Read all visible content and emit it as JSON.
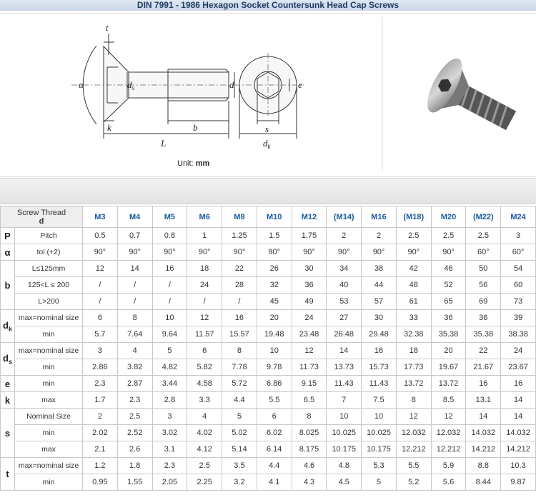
{
  "title": "DIN 7991 - 1986 Hexagon Socket Countersunk Head Cap Screws",
  "drawing": {
    "labels": [
      {
        "text": "t"
      },
      {
        "text": "α"
      },
      {
        "text": "d",
        "sub": "s"
      },
      {
        "text": "d"
      },
      {
        "text": "e"
      },
      {
        "text": "k"
      },
      {
        "text": "b"
      },
      {
        "text": "L"
      },
      {
        "text": "s"
      },
      {
        "text": "d",
        "sub": "k"
      }
    ],
    "unit_prefix": "Unit:",
    "unit": "mm"
  },
  "table": {
    "header": {
      "label": "Screw Thread",
      "sublabel": "d",
      "columns": [
        "M3",
        "M4",
        "M5",
        "M6",
        "M8",
        "M10",
        "M12",
        "(M14)",
        "M16",
        "(M18)",
        "M20",
        "(M22)",
        "M24"
      ]
    },
    "groups": [
      {
        "symbol": "P",
        "rows": [
          {
            "label": "Pitch",
            "values": [
              "0.5",
              "0.7",
              "0.8",
              "1",
              "1.25",
              "1.5",
              "1.75",
              "2",
              "2",
              "2.5",
              "2.5",
              "2.5",
              "3"
            ]
          }
        ]
      },
      {
        "symbol": "α",
        "rows": [
          {
            "label": "tol.(+2)",
            "values": [
              "90°",
              "90°",
              "90°",
              "90°",
              "90°",
              "90°",
              "90°",
              "90°",
              "90°",
              "90°",
              "90°",
              "60°",
              "60°"
            ]
          }
        ]
      },
      {
        "symbol": "b",
        "rows": [
          {
            "label": "L≤125mm",
            "values": [
              "12",
              "14",
              "16",
              "18",
              "22",
              "26",
              "30",
              "34",
              "38",
              "42",
              "46",
              "50",
              "54"
            ]
          },
          {
            "label": "125<L ≤ 200",
            "values": [
              "/",
              "/",
              "/",
              "24",
              "28",
              "32",
              "36",
              "40",
              "44",
              "48",
              "52",
              "56",
              "60"
            ]
          },
          {
            "label": "L>200",
            "values": [
              "/",
              "/",
              "/",
              "/",
              "/",
              "45",
              "49",
              "53",
              "57",
              "61",
              "65",
              "69",
              "73"
            ]
          }
        ]
      },
      {
        "symbol": "d",
        "sub": "k",
        "rows": [
          {
            "label": "max=nominal size",
            "values": [
              "6",
              "8",
              "10",
              "12",
              "16",
              "20",
              "24",
              "27",
              "30",
              "33",
              "36",
              "36",
              "39"
            ]
          },
          {
            "label": "min",
            "values": [
              "5.7",
              "7.64",
              "9.64",
              "11.57",
              "15.57",
              "19.48",
              "23.48",
              "26.48",
              "29.48",
              "32.38",
              "35.38",
              "35.38",
              "38.38"
            ]
          }
        ]
      },
      {
        "symbol": "d",
        "sub": "s",
        "rows": [
          {
            "label": "max=nominal size",
            "values": [
              "3",
              "4",
              "5",
              "6",
              "8",
              "10",
              "12",
              "14",
              "16",
              "18",
              "20",
              "22",
              "24"
            ]
          },
          {
            "label": "min",
            "values": [
              "2.86",
              "3.82",
              "4.82",
              "5.82",
              "7.78",
              "9.78",
              "11.73",
              "13.73",
              "15.73",
              "17.73",
              "19.67",
              "21.67",
              "23.67"
            ]
          }
        ]
      },
      {
        "symbol": "e",
        "rows": [
          {
            "label": "min",
            "values": [
              "2.3",
              "2.87",
              "3.44",
              "4.58",
              "5.72",
              "6.86",
              "9.15",
              "11.43",
              "11.43",
              "13.72",
              "13.72",
              "16",
              "16"
            ]
          }
        ]
      },
      {
        "symbol": "k",
        "rows": [
          {
            "label": "max",
            "values": [
              "1.7",
              "2.3",
              "2.8",
              "3.3",
              "4.4",
              "5.5",
              "6.5",
              "7",
              "7.5",
              "8",
              "8.5",
              "13.1",
              "14"
            ]
          }
        ]
      },
      {
        "symbol": "s",
        "rows": [
          {
            "label": "Nominal Size",
            "values": [
              "2",
              "2.5",
              "3",
              "4",
              "5",
              "6",
              "8",
              "10",
              "10",
              "12",
              "12",
              "14",
              "14"
            ]
          },
          {
            "label": "min",
            "values": [
              "2.02",
              "2.52",
              "3.02",
              "4.02",
              "5.02",
              "6.02",
              "8.025",
              "10.025",
              "10.025",
              "12.032",
              "12.032",
              "14.032",
              "14.032"
            ]
          },
          {
            "label": "max",
            "values": [
              "2.1",
              "2.6",
              "3.1",
              "4.12",
              "5.14",
              "6.14",
              "8.175",
              "10.175",
              "10.175",
              "12.212",
              "12.212",
              "14.212",
              "14.212"
            ]
          }
        ]
      },
      {
        "symbol": "t",
        "rows": [
          {
            "label": "max=nominal size",
            "values": [
              "1.2",
              "1.8",
              "2.3",
              "2.5",
              "3.5",
              "4.4",
              "4.6",
              "4.8",
              "5.3",
              "5.5",
              "5.9",
              "8.8",
              "10.3"
            ]
          },
          {
            "label": "min",
            "values": [
              "0.95",
              "1.55",
              "2.05",
              "2.25",
              "3.2",
              "4.1",
              "4.3",
              "4.5",
              "5",
              "5.2",
              "5.6",
              "8.44",
              "9.87"
            ]
          }
        ]
      }
    ]
  }
}
